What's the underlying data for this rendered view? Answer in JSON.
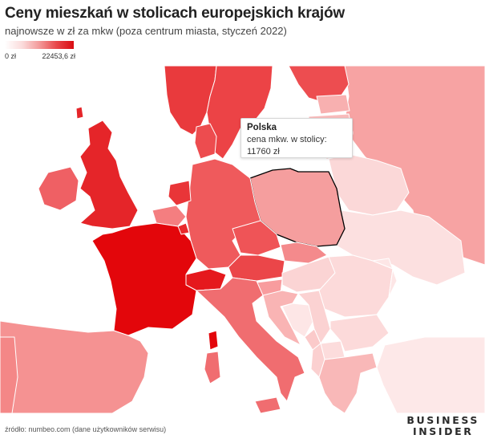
{
  "header": {
    "title": "Ceny mieszkań w stolicach europejskich krajów",
    "subtitle": "najnowsze w zł za mkw (poza centrum miasta, styczeń 2022)"
  },
  "legend": {
    "min_label": "0 zł",
    "max_label": "22453,6 zł",
    "color_low": "#ffffff",
    "color_high": "#d90d12"
  },
  "tooltip": {
    "country": "Polska",
    "label": "cena mkw. w stolicy:",
    "value": "11760 zł"
  },
  "source": "źródło: numbeo.com (dane użytkowników serwisu)",
  "logo": {
    "line1": "BUSINESS",
    "line2": "INSIDER"
  },
  "colors": {
    "background_sea": "#ffffff",
    "border": "#ffffff",
    "highlight_border": "#000000"
  }
}
